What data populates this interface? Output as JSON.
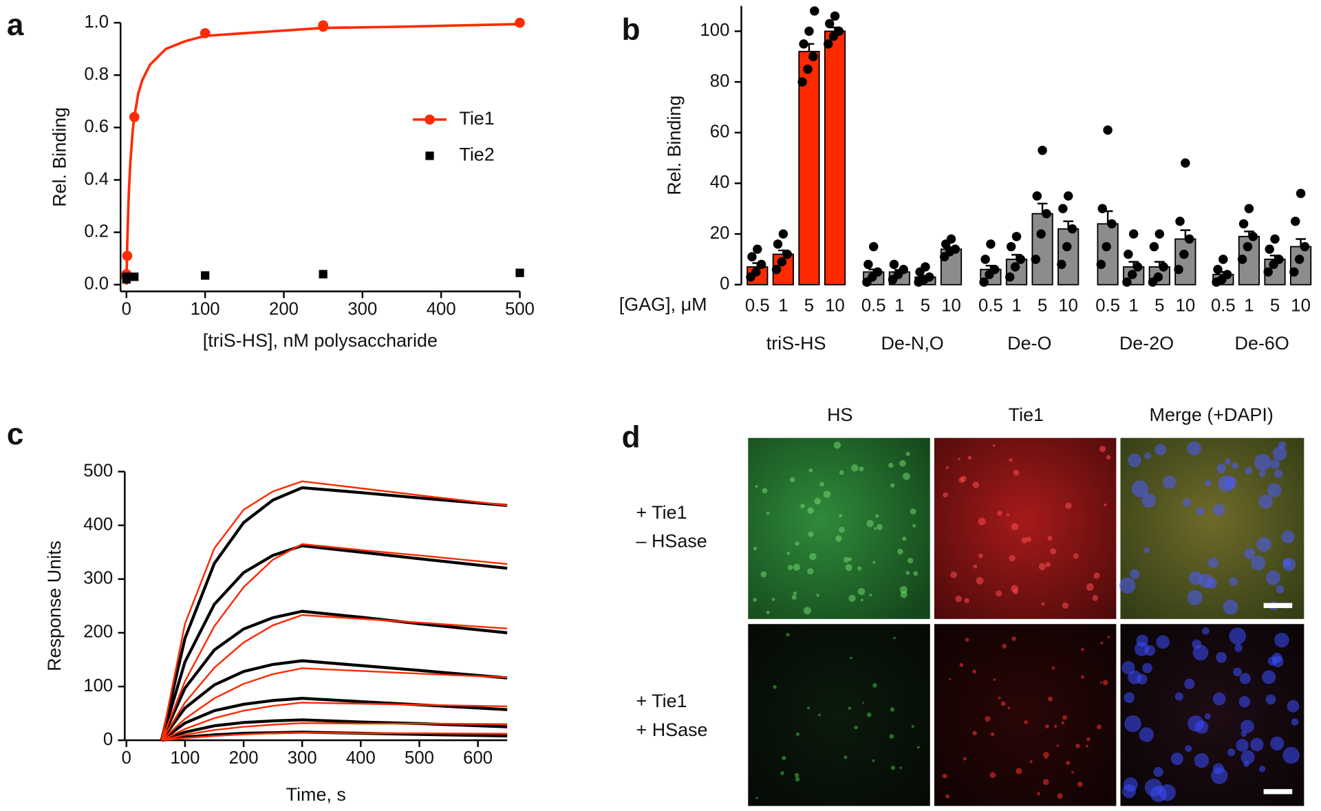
{
  "chart_data": [
    {
      "type": "scatter",
      "panel": "a",
      "x_label": "[triS-HS], nM polysaccharide",
      "y_label": "Rel. Binding",
      "xlim": [
        0,
        500
      ],
      "xticks": [
        0,
        100,
        200,
        300,
        400,
        500
      ],
      "ylim": [
        0,
        1
      ],
      "yticks": [
        {
          "value": 0,
          "label": "0.0"
        },
        0.2,
        0.4,
        0.6,
        0.8,
        {
          "value": 1,
          "label": "1.0"
        }
      ],
      "series": [
        {
          "name": "Tie1",
          "color": "#ff2a00",
          "marker": "circle",
          "x": [
            0,
            0,
            1,
            10,
            100,
            250,
            250,
            500
          ],
          "values": [
            0.03,
            0.04,
            0.11,
            0.64,
            0.96,
            0.985,
            0.99,
            1.0
          ]
        },
        {
          "name": "Tie2",
          "color": "#000000",
          "marker": "square",
          "x": [
            0,
            0,
            10,
            100,
            250,
            500
          ],
          "values": [
            0.02,
            0.03,
            0.03,
            0.035,
            0.04,
            0.045
          ]
        }
      ],
      "fit": {
        "x": [
          0,
          1,
          2,
          3,
          5,
          8,
          10,
          15,
          20,
          30,
          50,
          75,
          100,
          150,
          200,
          250,
          350,
          500
        ],
        "values": [
          0,
          0.15,
          0.26,
          0.35,
          0.47,
          0.59,
          0.64,
          0.73,
          0.78,
          0.84,
          0.9,
          0.93,
          0.95,
          0.96,
          0.97,
          0.98,
          0.985,
          0.995
        ]
      }
    },
    {
      "type": "bar",
      "panel": "b",
      "x_label": "[GAG], μM",
      "y_label": "Rel. Binding",
      "ylim": [
        0,
        110
      ],
      "yticks": [
        0,
        20,
        40,
        60,
        80,
        100
      ],
      "groups": [
        "triS-HS",
        "De-N,O",
        "De-O",
        "De-2O",
        "De-6O"
      ],
      "categories": [
        "0.5",
        "1",
        "5",
        "10",
        "0.5",
        "1",
        "5",
        "10",
        "0.5",
        "1",
        "5",
        "10",
        "0.5",
        "1",
        "5",
        "10",
        "0.5",
        "1",
        "5",
        "10"
      ],
      "values": [
        7,
        12,
        92,
        100,
        5,
        5,
        3,
        14,
        6,
        10,
        28,
        22,
        24,
        7,
        7,
        18,
        4,
        19,
        10,
        15
      ],
      "errors": [
        1.5,
        1.5,
        3,
        1.5,
        1,
        0.8,
        0.5,
        0.8,
        1.5,
        1.8,
        4,
        3,
        5,
        2,
        2,
        3.5,
        1,
        2,
        1.5,
        3
      ],
      "colors": [
        "#ff2a00",
        "#ff2a00",
        "#ff2a00",
        "#ff2a00",
        "#8c8c8c",
        "#8c8c8c",
        "#8c8c8c",
        "#8c8c8c",
        "#8c8c8c",
        "#8c8c8c",
        "#8c8c8c",
        "#8c8c8c",
        "#8c8c8c",
        "#8c8c8c",
        "#8c8c8c",
        "#8c8c8c",
        "#8c8c8c",
        "#8c8c8c",
        "#8c8c8c",
        "#8c8c8c"
      ],
      "points": [
        [
          3,
          5,
          8,
          11,
          14
        ],
        [
          6,
          9,
          12,
          16,
          20
        ],
        [
          80,
          85,
          90,
          95,
          100,
          108
        ],
        [
          95,
          98,
          100,
          103,
          106
        ],
        [
          1,
          3,
          5,
          8,
          15
        ],
        [
          2,
          4,
          6,
          8
        ],
        [
          1,
          2,
          3,
          5,
          7
        ],
        [
          11,
          13,
          14,
          16,
          18
        ],
        [
          1,
          4,
          6,
          10,
          16
        ],
        [
          3,
          7,
          10,
          15,
          19
        ],
        [
          10,
          20,
          28,
          35,
          53
        ],
        [
          8,
          15,
          22,
          30,
          35
        ],
        [
          8,
          15,
          24,
          30,
          61
        ],
        [
          1,
          4,
          7,
          12,
          20
        ],
        [
          1,
          3,
          7,
          15,
          20
        ],
        [
          6,
          12,
          18,
          25,
          48
        ],
        [
          1,
          2,
          4,
          6,
          10
        ],
        [
          10,
          15,
          19,
          24,
          30
        ],
        [
          5,
          8,
          10,
          14,
          18
        ],
        [
          5,
          10,
          15,
          25,
          36
        ]
      ]
    },
    {
      "type": "line",
      "panel": "c",
      "x_label": "Time, s",
      "y_label": "Response Units",
      "xlim": [
        0,
        650
      ],
      "xticks": [
        0,
        100,
        200,
        300,
        400,
        500,
        600
      ],
      "ylim": [
        0,
        500
      ],
      "yticks": [
        0,
        100,
        200,
        300,
        400,
        500
      ],
      "x": [
        60,
        100,
        150,
        200,
        250,
        300,
        400,
        500,
        650
      ],
      "series": [
        {
          "color": "#000000",
          "values": [
            0,
            190,
            329,
            405,
            447,
            470,
            461,
            451,
            437
          ]
        },
        {
          "color": "#000000",
          "values": [
            0,
            146,
            253,
            312,
            344,
            362,
            350,
            338,
            320
          ]
        },
        {
          "color": "#000000",
          "values": [
            0,
            97,
            168,
            207,
            228,
            240,
            229,
            217,
            200
          ]
        },
        {
          "color": "#000000",
          "values": [
            0,
            60,
            103,
            128,
            141,
            148,
            139,
            130,
            116
          ]
        },
        {
          "color": "#000000",
          "values": [
            0,
            32,
            55,
            67,
            74,
            78,
            72,
            66,
            57
          ]
        },
        {
          "color": "#000000",
          "values": [
            0,
            15,
            27,
            33,
            36,
            38,
            34,
            31,
            25
          ]
        },
        {
          "color": "#000000",
          "values": [
            0,
            6,
            10,
            13,
            14,
            15,
            13,
            11,
            8
          ]
        },
        {
          "color": "#ff2a00",
          "values": [
            0,
            217,
            357,
            429,
            463,
            482,
            469,
            456,
            437
          ]
        },
        {
          "color": "#ff2a00",
          "values": [
            0,
            110,
            212,
            285,
            336,
            365,
            354,
            344,
            328
          ]
        },
        {
          "color": "#ff2a00",
          "values": [
            0,
            70,
            135,
            182,
            214,
            233,
            226,
            219,
            208
          ]
        },
        {
          "color": "#ff2a00",
          "values": [
            0,
            40,
            78,
            105,
            123,
            134,
            129,
            124,
            117
          ]
        },
        {
          "color": "#ff2a00",
          "values": [
            0,
            21,
            41,
            55,
            64,
            70,
            68,
            66,
            63
          ]
        },
        {
          "color": "#ff2a00",
          "values": [
            0,
            10,
            19,
            25,
            29,
            32,
            31,
            31,
            30
          ]
        },
        {
          "color": "#ff2a00",
          "values": [
            0,
            4,
            8,
            11,
            13,
            14,
            13,
            13,
            12
          ]
        }
      ]
    }
  ],
  "micrographs": {
    "panel": "d",
    "columns": [
      "HS",
      "Tie1",
      "Merge (+DAPI)"
    ],
    "rows": [
      [
        "+ Tie1",
        "– HSase"
      ],
      [
        "+ Tie1",
        "+ HSase"
      ]
    ]
  }
}
